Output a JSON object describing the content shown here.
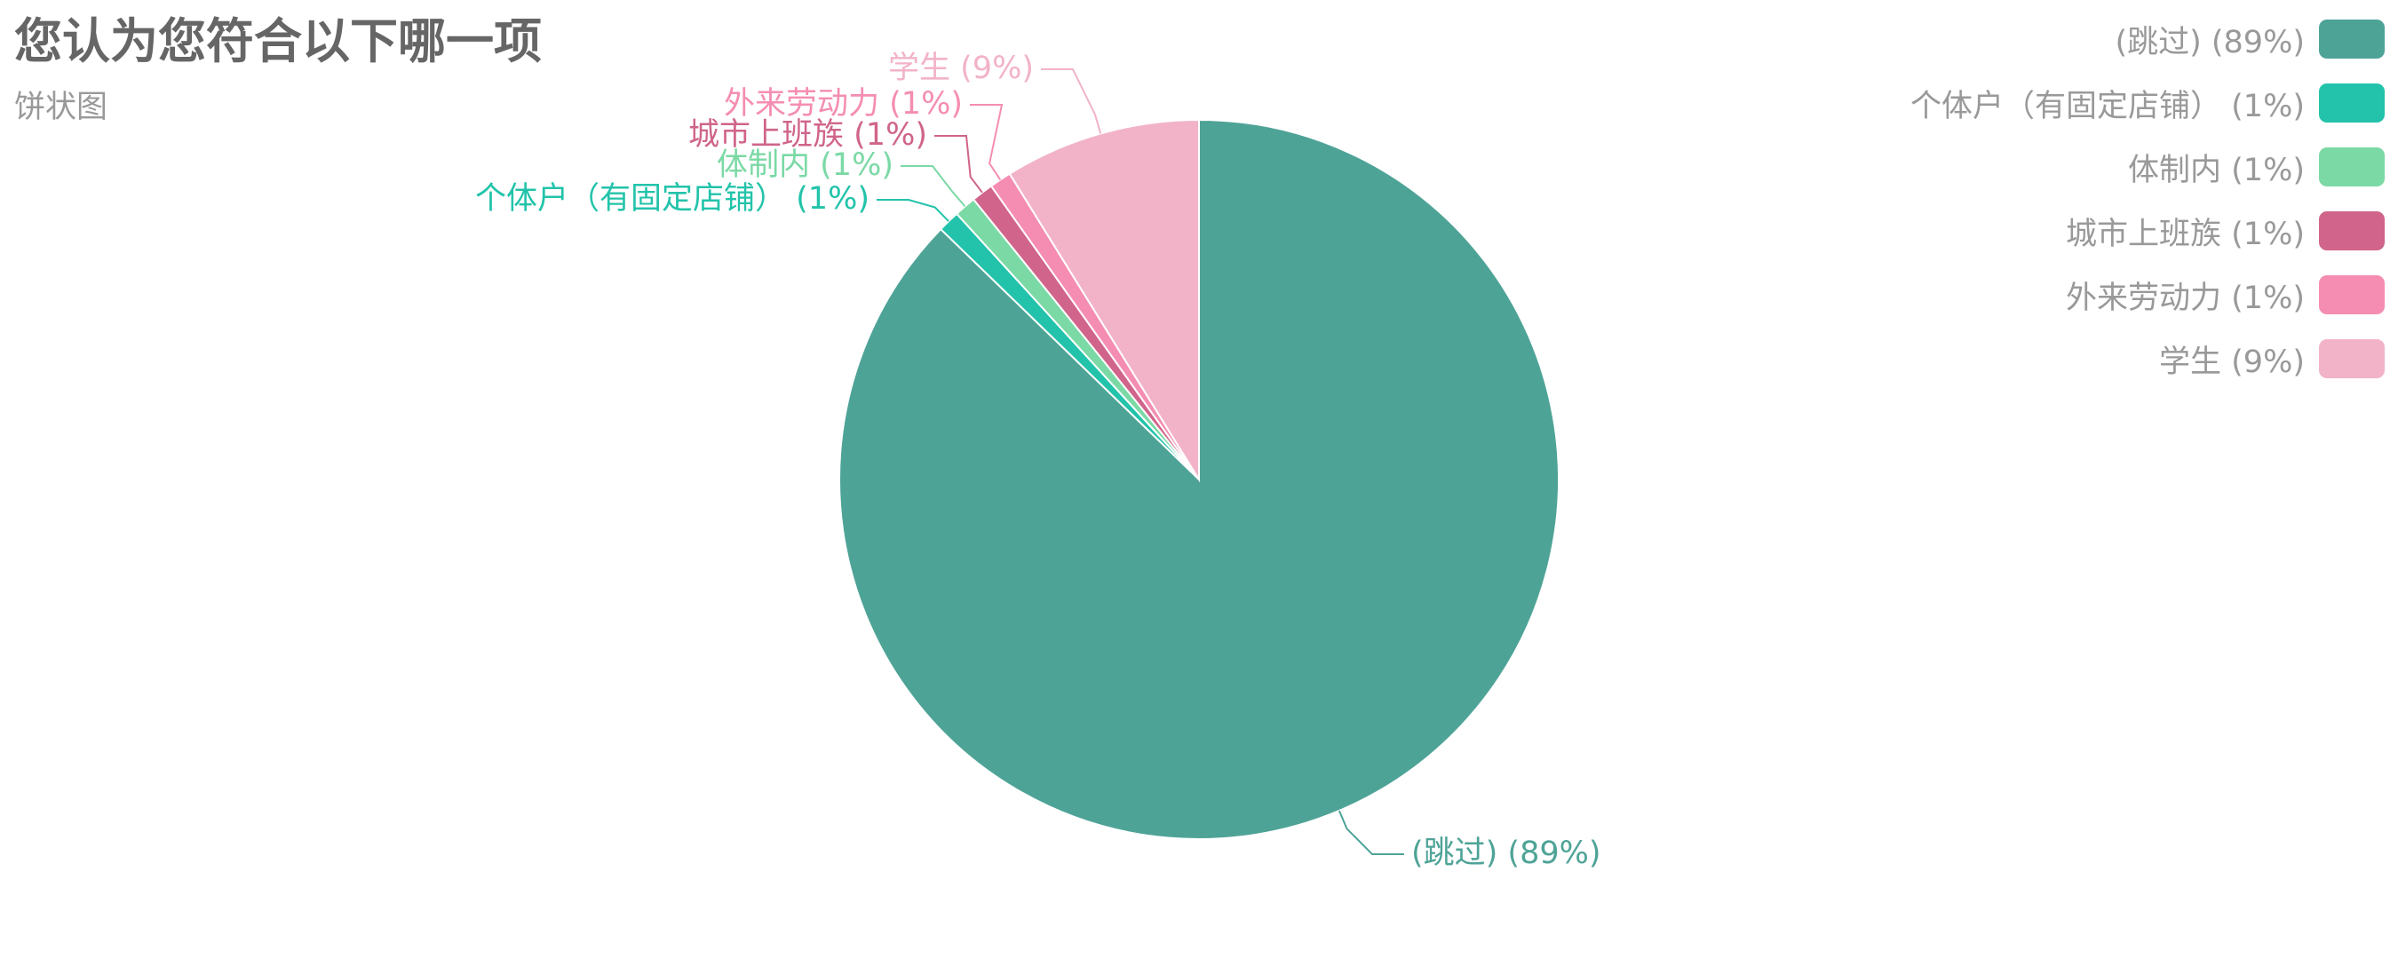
{
  "title": "您认为您符合以下哪一项",
  "subtitle": "饼状图",
  "chart_data": {
    "type": "pie",
    "title": "您认为您符合以下哪一项",
    "subtitle": "饼状图",
    "legend_position": "top-right",
    "slices": [
      {
        "label": "(跳过)",
        "value": 89,
        "display": "(跳过) (89%)",
        "color": "#4ea397"
      },
      {
        "label": "个体户（有固定店铺）",
        "value": 1,
        "display": "个体户（有固定店铺） (1%)",
        "color": "#22c3aa"
      },
      {
        "label": "体制内",
        "value": 1,
        "display": "体制内 (1%)",
        "color": "#7bd9a5"
      },
      {
        "label": "城市上班族",
        "value": 1,
        "display": "城市上班族 (1%)",
        "color": "#d0648a"
      },
      {
        "label": "外来劳动力",
        "value": 1,
        "display": "外来劳动力 (1%)",
        "color": "#f58db2"
      },
      {
        "label": "学生",
        "value": 9,
        "display": "学生 (9%)",
        "color": "#f2b3c9"
      }
    ]
  }
}
